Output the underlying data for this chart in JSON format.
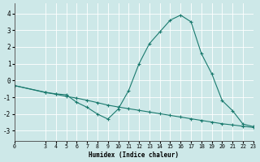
{
  "xlabel": "Humidex (Indice chaleur)",
  "ylabel": "",
  "bg_color": "#cde8e8",
  "grid_color": "#ffffff",
  "line_color": "#1a7a6e",
  "xlim": [
    0,
    23
  ],
  "ylim": [
    -3.6,
    4.6
  ],
  "xticks": [
    0,
    3,
    4,
    5,
    6,
    7,
    8,
    9,
    10,
    11,
    12,
    13,
    14,
    15,
    16,
    17,
    18,
    19,
    20,
    21,
    22,
    23
  ],
  "yticks": [
    -3,
    -2,
    -1,
    0,
    1,
    2,
    3,
    4
  ],
  "curve1_x": [
    0,
    3,
    4,
    5,
    6,
    7,
    8,
    9,
    10,
    11,
    12,
    13,
    14,
    15,
    16,
    17,
    18,
    19,
    20,
    21,
    22,
    23
  ],
  "curve1_y": [
    -0.3,
    -0.7,
    -0.8,
    -0.85,
    -1.3,
    -1.6,
    -2.0,
    -2.3,
    -1.7,
    -0.6,
    1.0,
    2.2,
    2.9,
    3.6,
    3.9,
    3.5,
    1.6,
    0.4,
    -1.2,
    -1.8,
    -2.6,
    -2.75
  ],
  "curve2_x": [
    0,
    3,
    4,
    5,
    6,
    7,
    8,
    9,
    10,
    11,
    12,
    13,
    14,
    15,
    16,
    17,
    18,
    19,
    20,
    21,
    22,
    23
  ],
  "curve2_y": [
    -0.3,
    -0.72,
    -0.82,
    -0.95,
    -1.05,
    -1.18,
    -1.32,
    -1.47,
    -1.58,
    -1.68,
    -1.78,
    -1.88,
    -1.98,
    -2.08,
    -2.18,
    -2.28,
    -2.38,
    -2.48,
    -2.58,
    -2.65,
    -2.73,
    -2.8
  ]
}
